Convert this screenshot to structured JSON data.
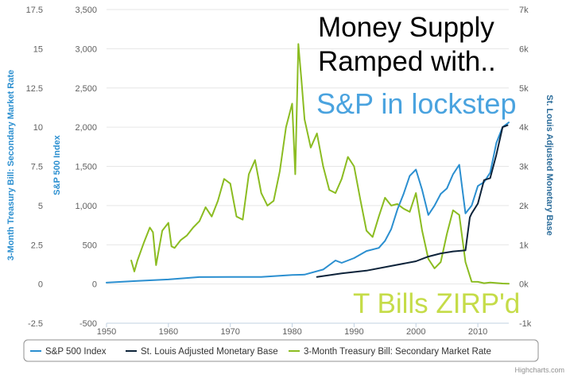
{
  "chart_data": {
    "type": "line",
    "title": "",
    "xlabel": "",
    "xlim": [
      1950,
      2015
    ],
    "x_ticks": [
      "1950",
      "1960",
      "1970",
      "1980",
      "1990",
      "2000",
      "2010"
    ],
    "axes": {
      "left_outer": {
        "title": "3-Month Treasury Bill: Secondary Market Rate",
        "ylim": [
          -2.5,
          17.5
        ],
        "ticks": [
          "-2.5",
          "0",
          "2.5",
          "5",
          "7.5",
          "10",
          "12.5",
          "15",
          "17.5"
        ]
      },
      "left_inner": {
        "title": "S&P 500 Index",
        "ylim": [
          -500,
          3500
        ],
        "ticks": [
          "-500",
          "0",
          "500",
          "1,000",
          "1,500",
          "2,000",
          "2,500",
          "3,000",
          "3,500"
        ]
      },
      "right": {
        "title": "St. Louis Adjusted Monetary Base",
        "ylim": [
          -1000,
          7000
        ],
        "ticks": [
          "-1k",
          "0k",
          "1k",
          "2k",
          "3k",
          "4k",
          "5k",
          "6k",
          "7k"
        ]
      }
    },
    "series": [
      {
        "name": "S&P 500 Index",
        "color": "#2b8fd0",
        "axis": "left_inner",
        "x": [
          1950,
          1955,
          1960,
          1965,
          1970,
          1975,
          1980,
          1982,
          1985,
          1987,
          1988,
          1990,
          1992,
          1994,
          1995,
          1996,
          1997,
          1998,
          1999,
          2000,
          2001,
          2002,
          2003,
          2004,
          2005,
          2006,
          2007,
          2008,
          2009,
          2010,
          2011,
          2012,
          2013,
          2014,
          2015
        ],
        "y": [
          17,
          40,
          58,
          88,
          90,
          90,
          115,
          120,
          185,
          300,
          270,
          330,
          420,
          460,
          550,
          700,
          950,
          1150,
          1380,
          1460,
          1200,
          880,
          1000,
          1150,
          1220,
          1400,
          1520,
          900,
          1000,
          1250,
          1300,
          1420,
          1800,
          2000,
          2060
        ]
      },
      {
        "name": "St. Louis Adjusted Monetary Base",
        "color": "#0d233a",
        "axis": "right",
        "x": [
          1984,
          1988,
          1992,
          1996,
          2000,
          2002,
          2004,
          2006,
          2008,
          2008.7,
          2009,
          2010,
          2011,
          2012,
          2013,
          2014,
          2014.8
        ],
        "y": [
          180,
          270,
          340,
          460,
          580,
          700,
          780,
          830,
          860,
          1700,
          1800,
          2050,
          2650,
          2700,
          3300,
          4000,
          4050
        ]
      },
      {
        "name": "3-Month Treasury Bill: Secondary Market Rate",
        "color": "#8bbc21",
        "axis": "left_outer",
        "x": [
          1954,
          1954.5,
          1955,
          1956,
          1957,
          1957.5,
          1958,
          1959,
          1960,
          1960.5,
          1961,
          1962,
          1963,
          1964,
          1965,
          1966,
          1967,
          1968,
          1969,
          1970,
          1971,
          1972,
          1973,
          1974,
          1975,
          1976,
          1977,
          1978,
          1979,
          1980,
          1980.5,
          1981,
          1981.5,
          1982,
          1983,
          1984,
          1985,
          1986,
          1987,
          1988,
          1989,
          1990,
          1991,
          1992,
          1993,
          1994,
          1995,
          1996,
          1997,
          1998,
          1999,
          2000,
          2001,
          2002,
          2003,
          2004,
          2005,
          2006,
          2007,
          2008,
          2009,
          2010,
          2011,
          2012,
          2013,
          2014,
          2015
        ],
        "y": [
          1.5,
          0.8,
          1.5,
          2.6,
          3.6,
          3.3,
          1.2,
          3.4,
          3.9,
          2.4,
          2.3,
          2.8,
          3.1,
          3.6,
          4.0,
          4.9,
          4.3,
          5.3,
          6.7,
          6.4,
          4.3,
          4.1,
          7.0,
          7.9,
          5.8,
          5.0,
          5.3,
          7.2,
          10.0,
          11.5,
          7.0,
          15.3,
          13.0,
          10.5,
          8.7,
          9.6,
          7.5,
          6.0,
          5.8,
          6.7,
          8.1,
          7.5,
          5.4,
          3.4,
          3.0,
          4.3,
          5.5,
          5.0,
          5.1,
          4.8,
          4.6,
          5.8,
          3.4,
          1.6,
          1.0,
          1.4,
          3.2,
          4.7,
          4.4,
          1.4,
          0.15,
          0.14,
          0.05,
          0.09,
          0.06,
          0.03,
          0.02
        ]
      }
    ],
    "legend": {
      "placement": "bottom",
      "items": [
        "S&P 500 Index",
        "St. Louis Adjusted Monetary Base",
        "3-Month Treasury Bill: Secondary Market Rate"
      ]
    },
    "annotations": [
      {
        "text": "Money Supply",
        "color": "#000000"
      },
      {
        "text": "Ramped with..",
        "color": "#000000"
      },
      {
        "text": "S&P in lockstep",
        "color": "#4aa3df"
      },
      {
        "text": "T Bills ZIRP'd",
        "color": "#c5dc48"
      }
    ],
    "credit": "Highcharts.com",
    "grid": true
  }
}
